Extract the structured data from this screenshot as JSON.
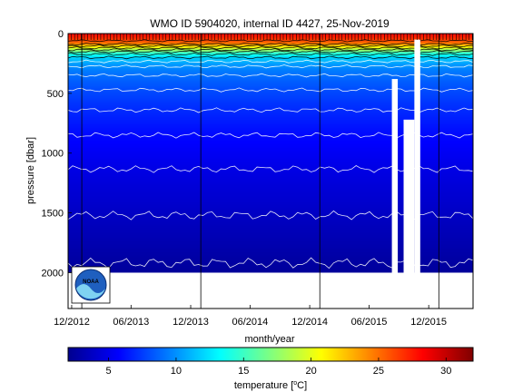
{
  "chart_data": {
    "type": "heatmap",
    "title": "WMO ID 5904020, internal ID 4427, 25-Nov-2019",
    "xlabel": "month/year",
    "ylabel": "pressure [dbar]",
    "colorbar_label": "temperature [",
    "colorbar_label_sup": "o",
    "colorbar_label_end": "C]",
    "x_range": [
      "2012-11-20",
      "2016-04-15"
    ],
    "x_ticks": [
      "12/2012",
      "06/2013",
      "12/2013",
      "06/2014",
      "12/2014",
      "06/2015",
      "12/2015"
    ],
    "y_range": [
      0,
      2300
    ],
    "y_reversed": true,
    "y_ticks": [
      0,
      500,
      1000,
      1500,
      2000
    ],
    "color_range": [
      2,
      32
    ],
    "colorbar_ticks": [
      5,
      10,
      15,
      20,
      25,
      30
    ],
    "colormap": "jet",
    "year_boundaries": [
      "2013-01-01",
      "2014-01-01",
      "2015-01-01",
      "2016-01-01"
    ],
    "temperature_profile": {
      "pressure": [
        0,
        40,
        80,
        120,
        160,
        200,
        250,
        300,
        400,
        500,
        600,
        700,
        800,
        900,
        1000,
        1200,
        1400,
        1600,
        1800,
        2000
      ],
      "temperature": [
        28,
        27,
        25,
        20,
        15,
        12,
        10.5,
        9.5,
        8.5,
        7.8,
        7.2,
        6.7,
        6.2,
        5.8,
        5.4,
        4.8,
        4.3,
        3.8,
        3.3,
        2.8
      ]
    },
    "contour_levels": [
      3,
      4,
      5,
      6,
      7,
      8,
      9,
      10,
      11,
      12,
      14,
      16,
      18,
      20,
      22,
      24,
      26
    ],
    "gaps": [
      {
        "start": "2015-08-10",
        "end": "2015-08-28",
        "from_pressure": 380
      },
      {
        "start": "2015-09-15",
        "end": "2015-10-18",
        "from_pressure": 720
      },
      {
        "start": "2015-10-18",
        "end": "2015-11-05",
        "from_pressure": 50
      }
    ],
    "max_profile_depth": 2000
  },
  "logo": {
    "text": "NOAA"
  }
}
